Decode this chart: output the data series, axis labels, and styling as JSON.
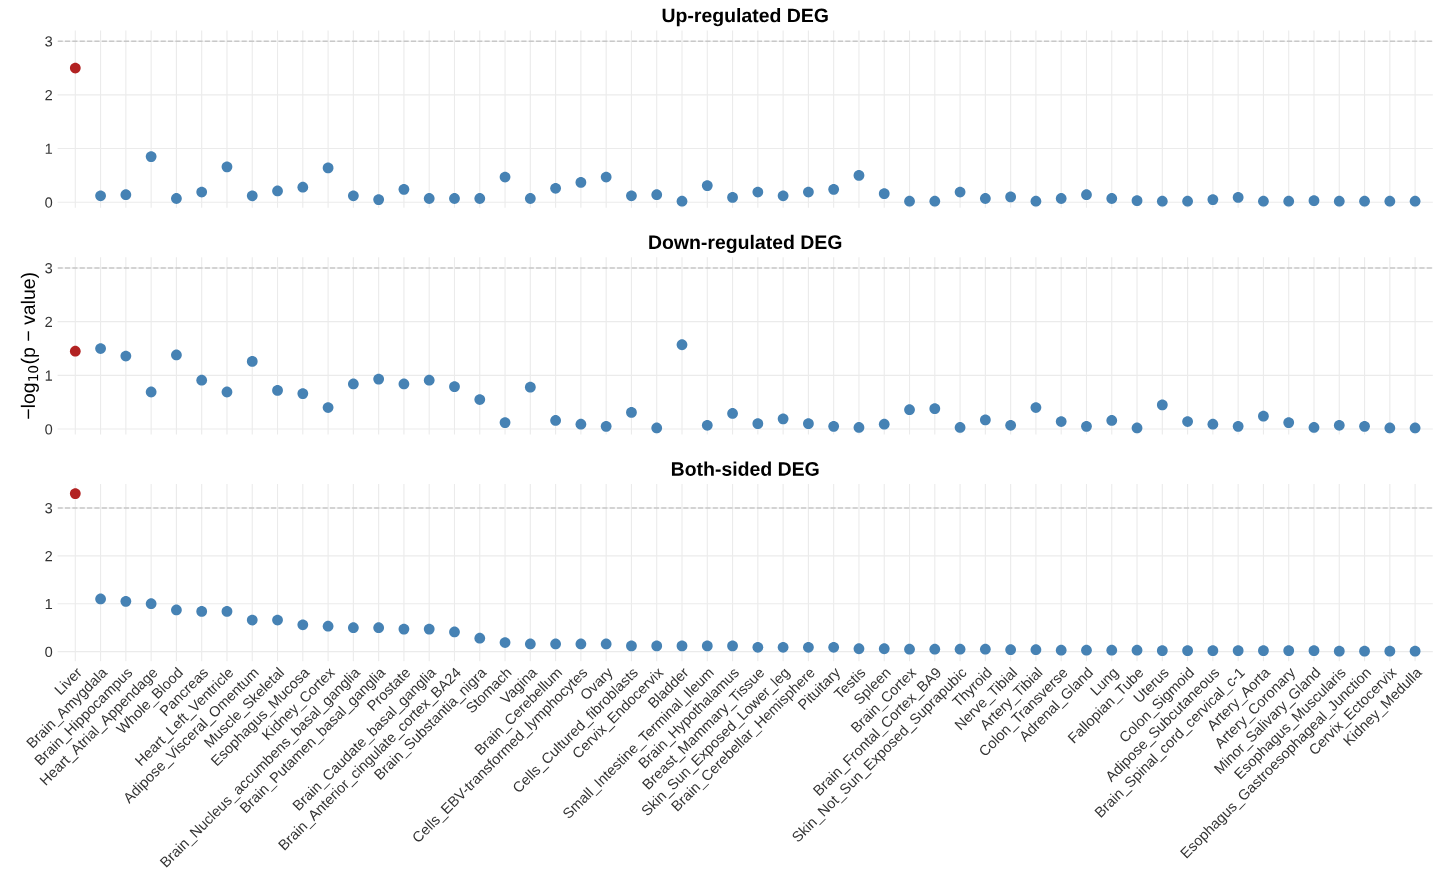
{
  "chart_data": [
    {
      "type": "scatter",
      "title": "Up-regulated DEG",
      "tick_labels": "y",
      "grid": true,
      "marker": "circle",
      "ylim": [
        -0.1,
        3.2
      ],
      "yticks": [
        0,
        1,
        2,
        3
      ],
      "ref_lines": [
        {
          "axis": "y",
          "value": 3,
          "color": "#c8c8c8",
          "line_style": "dashed"
        }
      ],
      "series": [
        {
          "colors": [
            "#b22222",
            "#4682b4",
            "#4682b4",
            "#4682b4",
            "#4682b4",
            "#4682b4",
            "#4682b4",
            "#4682b4",
            "#4682b4",
            "#4682b4",
            "#4682b4",
            "#4682b4",
            "#4682b4",
            "#4682b4",
            "#4682b4",
            "#4682b4",
            "#4682b4",
            "#4682b4",
            "#4682b4",
            "#4682b4",
            "#4682b4",
            "#4682b4",
            "#4682b4",
            "#4682b4",
            "#4682b4",
            "#4682b4",
            "#4682b4",
            "#4682b4",
            "#4682b4",
            "#4682b4",
            "#4682b4",
            "#4682b4",
            "#4682b4",
            "#4682b4",
            "#4682b4",
            "#4682b4",
            "#4682b4",
            "#4682b4",
            "#4682b4",
            "#4682b4",
            "#4682b4",
            "#4682b4",
            "#4682b4",
            "#4682b4",
            "#4682b4",
            "#4682b4",
            "#4682b4",
            "#4682b4",
            "#4682b4",
            "#4682b4",
            "#4682b4",
            "#4682b4",
            "#4682b4",
            "#4682b4"
          ],
          "values": [
            2.5,
            0.12,
            0.14,
            0.85,
            0.07,
            0.19,
            0.66,
            0.12,
            0.21,
            0.28,
            0.64,
            0.12,
            0.05,
            0.24,
            0.07,
            0.07,
            0.07,
            0.47,
            0.07,
            0.26,
            0.37,
            0.47,
            0.12,
            0.14,
            0.02,
            0.31,
            0.09,
            0.19,
            0.12,
            0.19,
            0.24,
            0.5,
            0.16,
            0.02,
            0.02,
            0.19,
            0.07,
            0.1,
            0.02,
            0.07,
            0.14,
            0.07,
            0.03,
            0.02,
            0.02,
            0.05,
            0.09,
            0.02,
            0.02,
            0.03,
            0.02,
            0.02,
            0.02,
            0.02
          ]
        }
      ]
    },
    {
      "type": "scatter",
      "title": "Down-regulated DEG",
      "ylabel": "−log$_{10}$(p − value)",
      "tick_labels": "y",
      "grid": true,
      "marker": "circle",
      "ylim": [
        -0.1,
        3.2
      ],
      "yticks": [
        0,
        1,
        2,
        3
      ],
      "ref_lines": [
        {
          "axis": "y",
          "value": 3,
          "color": "#c8c8c8",
          "line_style": "dashed"
        }
      ],
      "series": [
        {
          "colors": [
            "#b22222",
            "#4682b4",
            "#4682b4",
            "#4682b4",
            "#4682b4",
            "#4682b4",
            "#4682b4",
            "#4682b4",
            "#4682b4",
            "#4682b4",
            "#4682b4",
            "#4682b4",
            "#4682b4",
            "#4682b4",
            "#4682b4",
            "#4682b4",
            "#4682b4",
            "#4682b4",
            "#4682b4",
            "#4682b4",
            "#4682b4",
            "#4682b4",
            "#4682b4",
            "#4682b4",
            "#4682b4",
            "#4682b4",
            "#4682b4",
            "#4682b4",
            "#4682b4",
            "#4682b4",
            "#4682b4",
            "#4682b4",
            "#4682b4",
            "#4682b4",
            "#4682b4",
            "#4682b4",
            "#4682b4",
            "#4682b4",
            "#4682b4",
            "#4682b4",
            "#4682b4",
            "#4682b4",
            "#4682b4",
            "#4682b4",
            "#4682b4",
            "#4682b4",
            "#4682b4",
            "#4682b4",
            "#4682b4",
            "#4682b4",
            "#4682b4",
            "#4682b4",
            "#4682b4",
            "#4682b4"
          ],
          "values": [
            1.45,
            1.5,
            1.36,
            0.69,
            1.38,
            0.91,
            0.69,
            1.26,
            0.72,
            0.66,
            0.4,
            0.84,
            0.93,
            0.84,
            0.91,
            0.79,
            0.55,
            0.12,
            0.78,
            0.16,
            0.09,
            0.05,
            0.31,
            0.02,
            1.57,
            0.07,
            0.29,
            0.1,
            0.19,
            0.1,
            0.05,
            0.03,
            0.09,
            0.36,
            0.38,
            0.03,
            0.17,
            0.07,
            0.4,
            0.14,
            0.05,
            0.16,
            0.02,
            0.45,
            0.14,
            0.09,
            0.05,
            0.24,
            0.12,
            0.03,
            0.07,
            0.05,
            0.02,
            0.02
          ]
        }
      ]
    },
    {
      "type": "scatter",
      "title": "Both-sided DEG",
      "grid": true,
      "marker": "circle",
      "ylim": [
        -0.2,
        3.5
      ],
      "yticks": [
        0,
        1,
        2,
        3
      ],
      "ref_lines": [
        {
          "axis": "y",
          "value": 3,
          "color": "#c8c8c8",
          "line_style": "dashed"
        }
      ],
      "categories": [
        "Liver",
        "Brain_Amygdala",
        "Brain_Hippocampus",
        "Heart_Atrial_Appendage",
        "Whole_Blood",
        "Pancreas",
        "Heart_Left_Ventricle",
        "Adipose_Visceral_Omentum",
        "Muscle_Skeletal",
        "Esophagus_Mucosa",
        "Kidney_Cortex",
        "Brain_Nucleus_accumbens_basal_ganglia",
        "Brain_Putamen_basal_ganglia",
        "Prostate",
        "Brain_Caudate_basal_ganglia",
        "Brain_Anterior_cingulate_cortex_BA24",
        "Brain_Substantia_nigra",
        "Stomach",
        "Vagina",
        "Brain_Cerebellum",
        "Cells_EBV-transformed_lymphocytes",
        "Ovary",
        "Cells_Cultured_fibroblasts",
        "Cervix_Endocervix",
        "Bladder",
        "Small_Intestine_Terminal_Ileum",
        "Brain_Hypothalamus",
        "Breast_Mammary_Tissue",
        "Skin_Sun_Exposed_Lower_leg",
        "Brain_Cerebellar_Hemisphere",
        "Pituitary",
        "Testis",
        "Spleen",
        "Brain_Cortex",
        "Brain_Frontal_Cortex_BA9",
        "Skin_Not_Sun_Exposed_Suprapubic",
        "Thyroid",
        "Nerve_Tibial",
        "Artery_Tibial",
        "Colon_Transverse",
        "Adrenal_Gland",
        "Lung",
        "Fallopian_Tube",
        "Uterus",
        "Colon_Sigmoid",
        "Adipose_Subcutaneous",
        "Brain_Spinal_cord_cervical_c-1",
        "Artery_Aorta",
        "Artery_Coronary",
        "Minor_Salivary_Gland",
        "Esophagus_Muscularis",
        "Esophagus_Gastroesophageal_Junction",
        "Cervix_Ectocervix",
        "Kidney_Medulla"
      ],
      "series": [
        {
          "colors": [
            "#b22222",
            "#4682b4",
            "#4682b4",
            "#4682b4",
            "#4682b4",
            "#4682b4",
            "#4682b4",
            "#4682b4",
            "#4682b4",
            "#4682b4",
            "#4682b4",
            "#4682b4",
            "#4682b4",
            "#4682b4",
            "#4682b4",
            "#4682b4",
            "#4682b4",
            "#4682b4",
            "#4682b4",
            "#4682b4",
            "#4682b4",
            "#4682b4",
            "#4682b4",
            "#4682b4",
            "#4682b4",
            "#4682b4",
            "#4682b4",
            "#4682b4",
            "#4682b4",
            "#4682b4",
            "#4682b4",
            "#4682b4",
            "#4682b4",
            "#4682b4",
            "#4682b4",
            "#4682b4",
            "#4682b4",
            "#4682b4",
            "#4682b4",
            "#4682b4",
            "#4682b4",
            "#4682b4",
            "#4682b4",
            "#4682b4",
            "#4682b4",
            "#4682b4",
            "#4682b4",
            "#4682b4",
            "#4682b4",
            "#4682b4",
            "#4682b4",
            "#4682b4",
            "#4682b4",
            "#4682b4"
          ],
          "values": [
            3.3,
            1.1,
            1.05,
            1.0,
            0.87,
            0.84,
            0.84,
            0.66,
            0.66,
            0.56,
            0.53,
            0.5,
            0.5,
            0.47,
            0.47,
            0.41,
            0.28,
            0.19,
            0.16,
            0.16,
            0.16,
            0.16,
            0.12,
            0.12,
            0.12,
            0.12,
            0.12,
            0.09,
            0.09,
            0.09,
            0.09,
            0.06,
            0.06,
            0.05,
            0.05,
            0.05,
            0.05,
            0.04,
            0.04,
            0.03,
            0.03,
            0.03,
            0.03,
            0.02,
            0.02,
            0.02,
            0.02,
            0.02,
            0.02,
            0.02,
            0.01,
            0.01,
            0.01,
            0.01
          ]
        }
      ]
    }
  ]
}
